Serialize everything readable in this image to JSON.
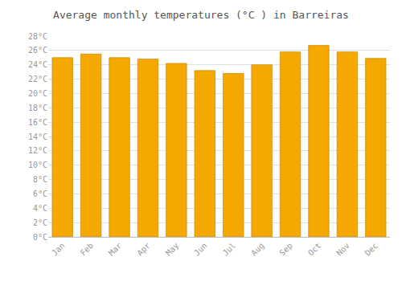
{
  "chart_data": {
    "type": "bar",
    "title": "Average monthly temperatures (°C ) in Barreiras",
    "categories": [
      "Jan",
      "Feb",
      "Mar",
      "Apr",
      "May",
      "Jun",
      "Jul",
      "Aug",
      "Sep",
      "Oct",
      "Nov",
      "Dec"
    ],
    "values": [
      25.0,
      25.5,
      25.0,
      24.8,
      24.2,
      23.2,
      22.8,
      24.0,
      25.8,
      26.7,
      25.8,
      24.9
    ],
    "color": "#F5A800",
    "ylim": [
      0,
      28
    ],
    "yticks": [
      {
        "value": 0,
        "label": "0°C"
      },
      {
        "value": 2,
        "label": "2°C"
      },
      {
        "value": 4,
        "label": "4°C"
      },
      {
        "value": 6,
        "label": "6°C"
      },
      {
        "value": 8,
        "label": "8°C"
      },
      {
        "value": 10,
        "label": "10°C"
      },
      {
        "value": 12,
        "label": "12°C"
      },
      {
        "value": 14,
        "label": "14°C"
      },
      {
        "value": 16,
        "label": "16°C"
      },
      {
        "value": 18,
        "label": "18°C"
      },
      {
        "value": 20,
        "label": "20°C"
      },
      {
        "value": 22,
        "label": "22°C"
      },
      {
        "value": 24,
        "label": "24°C"
      },
      {
        "value": 26,
        "label": "26°C"
      },
      {
        "value": 28,
        "label": "28°C"
      }
    ],
    "grid": true
  }
}
